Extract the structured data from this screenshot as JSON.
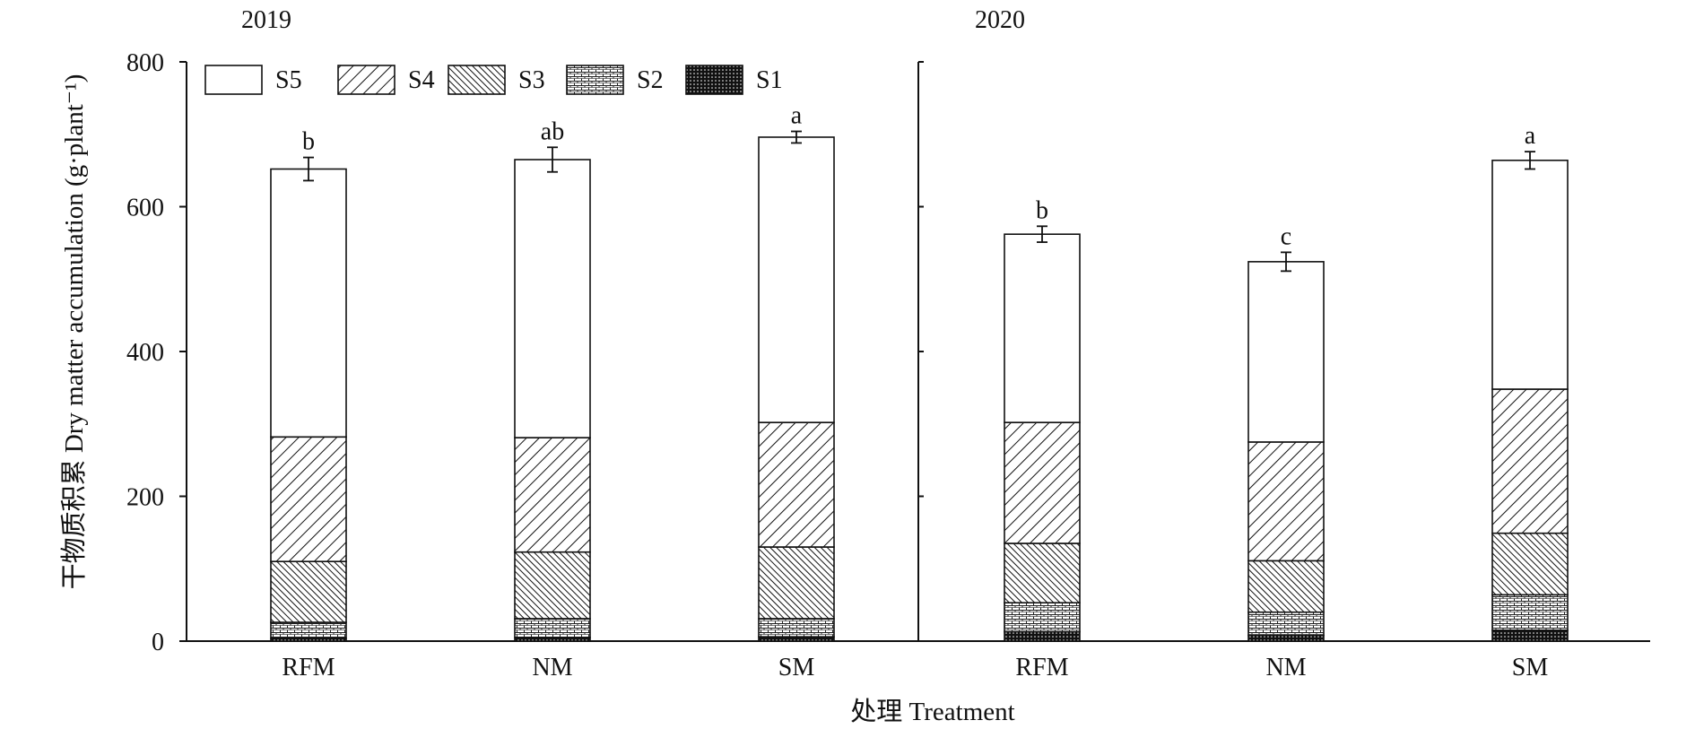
{
  "chart_data": {
    "type": "bar",
    "stacked": true,
    "ylabel": "干物质积累 Dry matter accumulation (g·plant⁻¹)",
    "xlabel": "处理 Treatment",
    "ylim": [
      0,
      800
    ],
    "yticks": [
      "0",
      "200",
      "400",
      "600",
      "800"
    ],
    "legend": {
      "position": "top-left",
      "entries": [
        "S5",
        "S4",
        "S3",
        "S2",
        "S1"
      ]
    },
    "panels": [
      {
        "title": "2019",
        "categories": [
          "RFM",
          "NM",
          "SM"
        ],
        "series": [
          {
            "name": "S1",
            "values": [
              4,
              5,
              6
            ]
          },
          {
            "name": "S2",
            "values": [
              22,
              26,
              25
            ]
          },
          {
            "name": "S3",
            "values": [
              84,
              92,
              99
            ]
          },
          {
            "name": "S4",
            "values": [
              172,
              158,
              172
            ]
          },
          {
            "name": "S5",
            "values": [
              370,
              384,
              394
            ]
          }
        ],
        "totals": [
          652,
          665,
          696
        ],
        "errors": [
          16,
          17,
          8
        ],
        "significance": [
          "b",
          "ab",
          "a"
        ]
      },
      {
        "title": "2020",
        "categories": [
          "RFM",
          "NM",
          "SM"
        ],
        "series": [
          {
            "name": "S1",
            "values": [
              13,
              8,
              15
            ]
          },
          {
            "name": "S2",
            "values": [
              40,
              32,
              49
            ]
          },
          {
            "name": "S3",
            "values": [
              82,
              71,
              85
            ]
          },
          {
            "name": "S4",
            "values": [
              167,
              164,
              199
            ]
          },
          {
            "name": "S5",
            "values": [
              260,
              249,
              316
            ]
          }
        ],
        "totals": [
          562,
          524,
          664
        ],
        "errors": [
          11,
          13,
          12
        ],
        "significance": [
          "b",
          "c",
          "a"
        ]
      }
    ]
  }
}
